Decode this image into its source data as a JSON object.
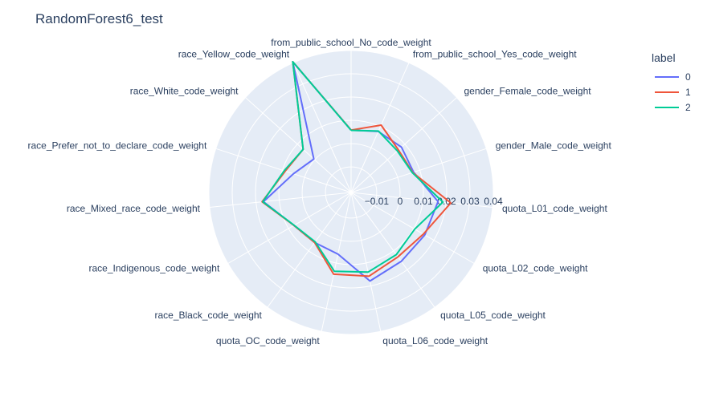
{
  "chart_data": {
    "type": "radar",
    "title": "RandomForest6_test",
    "legend": {
      "title": "label",
      "placement": "top-right"
    },
    "radial_range": [
      -0.021,
      0.04
    ],
    "radial_ticks": [
      -0.01,
      0,
      0.01,
      0.02,
      0.03,
      0.04
    ],
    "radial_tick_labels": [
      "−0.01",
      "0",
      "0.01",
      "0.02",
      "0.03",
      "0.04"
    ],
    "categories": [
      "from_public_school_No_code_weight",
      "from_public_school_Yes_code_weight",
      "gender_Female_code_weight",
      "gender_Male_code_weight",
      "quota_L01_code_weight",
      "quota_L02_code_weight",
      "quota_L05_code_weight",
      "quota_L06_code_weight",
      "quota_OC_code_weight",
      "race_Black_code_weight",
      "race_Indigenous_code_weight",
      "race_Mixed_race_code_weight",
      "race_Prefer_not_to_declare_code_weight",
      "race_White_code_weight",
      "race_Yellow_code_weight"
    ],
    "series": [
      {
        "name": "0",
        "color": "#636efa",
        "values": [
          0.0058,
          0.0077,
          0.0081,
          0.0072,
          0.0165,
          0.0155,
          0.0156,
          0.0179,
          0.0061,
          0.0056,
          0.0073,
          0.0168,
          0.005,
          0.0005,
          0.0405
        ]
      },
      {
        "name": "1",
        "color": "#ef553b",
        "values": [
          0.0058,
          0.0107,
          0.0063,
          0.0068,
          0.022,
          0.0148,
          0.0132,
          0.0158,
          0.0149,
          0.0056,
          0.0073,
          0.0174,
          0.0087,
          0.0067,
          0.0405
        ]
      },
      {
        "name": "2",
        "color": "#00cc96",
        "values": [
          0.0057,
          0.0079,
          0.0057,
          0.0066,
          0.0186,
          0.0105,
          0.012,
          0.014,
          0.0136,
          0.0052,
          0.0072,
          0.0171,
          0.0092,
          0.0067,
          0.0405
        ]
      }
    ]
  }
}
